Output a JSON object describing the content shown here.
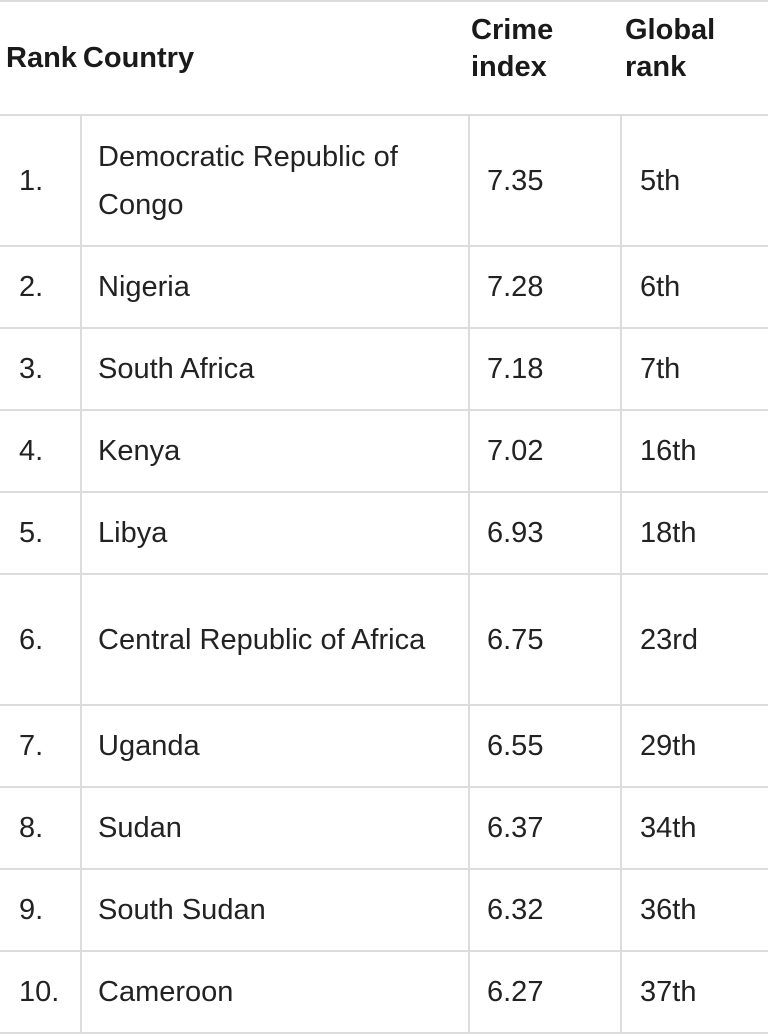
{
  "table": {
    "headers": {
      "rank": "Rank",
      "country": "Country",
      "crime_index": "Crime index",
      "crime_index_line1": "Crime",
      "crime_index_line2": "index",
      "global_rank": "Global rank",
      "global_rank_line1": "Global",
      "global_rank_line2": "rank"
    },
    "rows": [
      {
        "rank": "1.",
        "country": "Democratic Republic of Congo",
        "crime_index": "7.35",
        "global_rank": "5th"
      },
      {
        "rank": "2.",
        "country": "Nigeria",
        "crime_index": "7.28",
        "global_rank": "6th"
      },
      {
        "rank": "3.",
        "country": "South Africa",
        "crime_index": "7.18",
        "global_rank": "7th"
      },
      {
        "rank": "4.",
        "country": "Kenya",
        "crime_index": "7.02",
        "global_rank": "16th"
      },
      {
        "rank": "5.",
        "country": "Libya",
        "crime_index": "6.93",
        "global_rank": "18th"
      },
      {
        "rank": "6.",
        "country": "Central Republic of Africa",
        "crime_index": "6.75",
        "global_rank": "23rd"
      },
      {
        "rank": "7.",
        "country": "Uganda",
        "crime_index": "6.55",
        "global_rank": "29th"
      },
      {
        "rank": "8.",
        "country": "Sudan",
        "crime_index": "6.37",
        "global_rank": "34th"
      },
      {
        "rank": "9.",
        "country": "South Sudan",
        "crime_index": "6.32",
        "global_rank": "36th"
      },
      {
        "rank": "10.",
        "country": "Cameroon",
        "crime_index": "6.27",
        "global_rank": "37th"
      }
    ]
  }
}
